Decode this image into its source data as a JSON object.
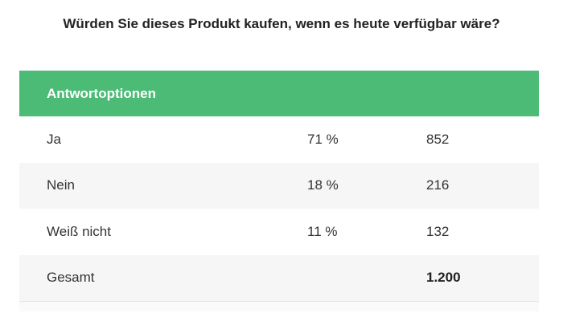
{
  "title": "Würden Sie dieses Produkt kaufen, wenn es heute verfügbar wäre?",
  "table": {
    "header": "Antwortoptionen",
    "rows": [
      {
        "label": "Ja",
        "percent": "71 %",
        "count": "852"
      },
      {
        "label": "Nein",
        "percent": "18 %",
        "count": "216"
      },
      {
        "label": "Weiß nicht",
        "percent": "11 %",
        "count": "132"
      }
    ],
    "total": {
      "label": "Gesamt",
      "count": "1.200"
    }
  },
  "colors": {
    "header_bg": "#4bbb76"
  }
}
